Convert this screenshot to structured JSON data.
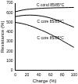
{
  "chart_data": {
    "type": "line",
    "x_label": "Charge (%)",
    "y_label": "Resistance (%)",
    "x": [
      0,
      10,
      20,
      30,
      40,
      50,
      60,
      70,
      80,
      90,
      100
    ],
    "series": [
      {
        "name": "C cond 85/85°C",
        "color": "#000000",
        "values": [
          610,
          625,
          635,
          640,
          645,
          648,
          650,
          652,
          653,
          654,
          655
        ]
      },
      {
        "name": "C core 85/85°C",
        "color": "#000000",
        "values": [
          560,
          570,
          575,
          575,
          570,
          560,
          545,
          525,
          500,
          475,
          450
        ]
      },
      {
        "name": "C core 85/85°C",
        "color": "#000000",
        "values": [
          500,
          490,
          475,
          455,
          430,
          405,
          375,
          345,
          310,
          275,
          240
        ]
      }
    ],
    "xlim": [
      0,
      100
    ],
    "xticks": [
      0,
      20,
      40,
      60,
      80,
      100
    ],
    "ylim": [
      0,
      700
    ],
    "yticks": [
      0,
      100,
      200,
      300,
      400,
      500,
      600,
      700
    ],
    "grid": false
  }
}
